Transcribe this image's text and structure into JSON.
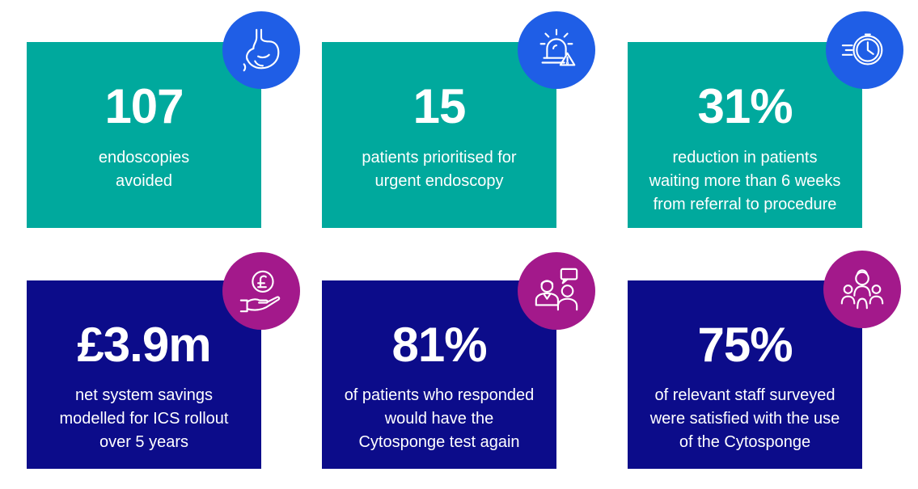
{
  "cards": [
    {
      "stat": "107",
      "line1": "endoscopies",
      "line2": "avoided",
      "line3": "",
      "icon": "stomach-icon",
      "color": "#00A99D"
    },
    {
      "stat": "15",
      "line1": "patients prioritised for",
      "line2": "urgent endoscopy",
      "line3": "",
      "icon": "alert-siren-icon",
      "color": "#00A99D"
    },
    {
      "stat": "31%",
      "line1": "reduction in patients",
      "line2": "waiting more than 6 weeks",
      "line3": "from referral to procedure",
      "icon": "fast-clock-icon",
      "color": "#00A99D"
    },
    {
      "stat": "£3.9m",
      "line1": "net system savings",
      "line2": "modelled for ICS rollout",
      "line3": "over 5 years",
      "icon": "pound-coin-hand-icon",
      "color": "#0C0C8A"
    },
    {
      "stat": "81%",
      "line1": "of patients who responded",
      "line2": "would have the",
      "line3": "Cytosponge test again",
      "icon": "doctor-patient-chat-icon",
      "color": "#0C0C8A"
    },
    {
      "stat": "75%",
      "line1": "of relevant staff surveyed",
      "line2": "were satisfied with the use",
      "line3": "of the Cytosponge",
      "icon": "staff-group-icon",
      "color": "#0C0C8A"
    }
  ],
  "icon_colors": {
    "blue": "#1F5EE6",
    "magenta": "#A3198B"
  }
}
